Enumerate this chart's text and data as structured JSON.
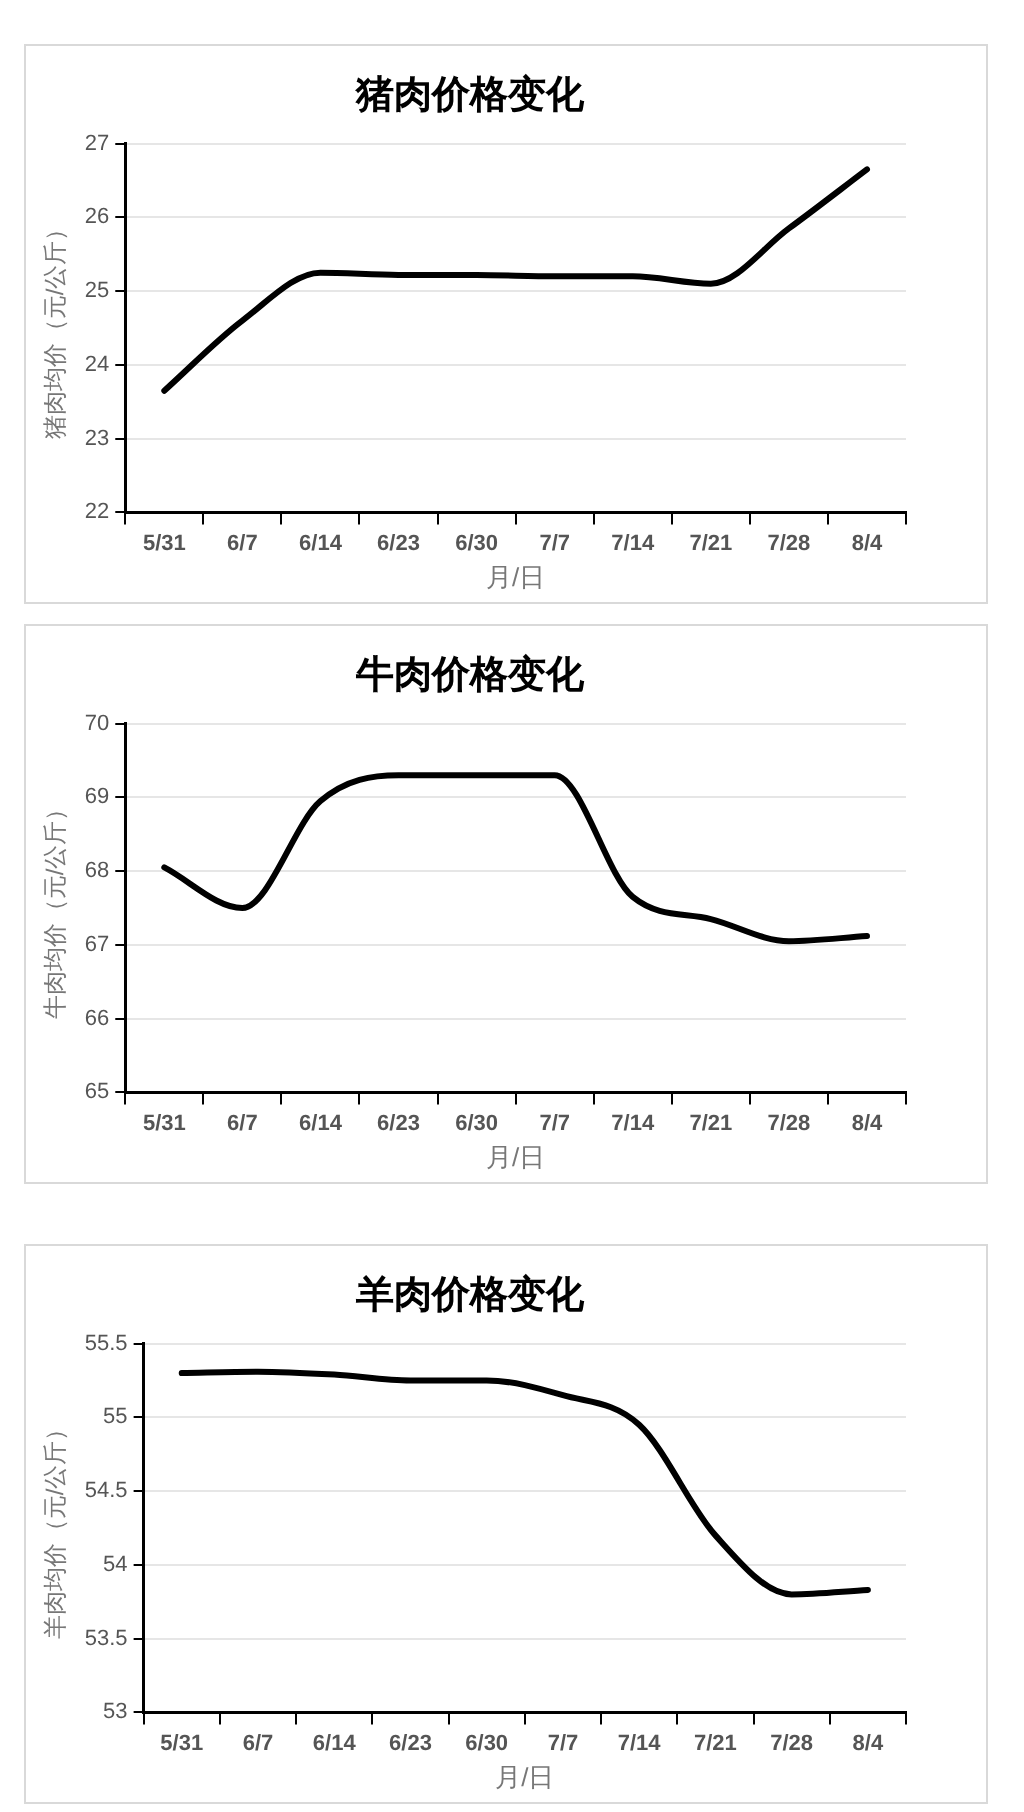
{
  "chart_data": [
    {
      "type": "line",
      "title": "猪肉价格变化",
      "xlabel": "月/日",
      "ylabel": "猪肉均价（元/公斤）",
      "categories": [
        "5/31",
        "6/7",
        "6/14",
        "6/23",
        "6/30",
        "7/7",
        "7/14",
        "7/21",
        "7/28",
        "8/4"
      ],
      "series": [
        {
          "color": "#000000",
          "values": [
            23.65,
            24.6,
            25.25,
            25.22,
            25.22,
            25.2,
            25.2,
            25.1,
            25.85,
            26.65
          ]
        }
      ],
      "ylim": [
        22,
        27
      ],
      "yticks": [
        22,
        23,
        24,
        25,
        26,
        27
      ],
      "grid": "y",
      "legend": false,
      "marker": "none",
      "line_style": "solid"
    },
    {
      "type": "line",
      "title": "牛肉价格变化",
      "xlabel": "月/日",
      "ylabel": "牛肉均价（元/公斤）",
      "categories": [
        "5/31",
        "6/7",
        "6/14",
        "6/23",
        "6/30",
        "7/7",
        "7/14",
        "7/21",
        "7/28",
        "8/4"
      ],
      "series": [
        {
          "color": "#000000",
          "values": [
            68.05,
            67.5,
            68.95,
            69.3,
            69.3,
            69.3,
            67.65,
            67.35,
            67.05,
            67.12
          ]
        }
      ],
      "ylim": [
        65,
        70
      ],
      "yticks": [
        65,
        66,
        67,
        68,
        69,
        70
      ],
      "grid": "y",
      "legend": false,
      "marker": "none",
      "line_style": "solid"
    },
    {
      "type": "line",
      "title": "羊肉价格变化",
      "xlabel": "月/日",
      "ylabel": "羊肉均价（元/公斤）",
      "categories": [
        "5/31",
        "6/7",
        "6/14",
        "6/23",
        "6/30",
        "7/7",
        "7/14",
        "7/21",
        "7/28",
        "8/4"
      ],
      "series": [
        {
          "color": "#000000",
          "values": [
            55.3,
            55.31,
            55.29,
            55.25,
            55.25,
            55.15,
            54.95,
            54.2,
            53.8,
            53.83
          ]
        }
      ],
      "ylim": [
        53,
        55.5
      ],
      "yticks": [
        53,
        53.5,
        54,
        54.5,
        55,
        55.5
      ],
      "grid": "y",
      "legend": false,
      "marker": "none",
      "line_style": "solid"
    }
  ]
}
